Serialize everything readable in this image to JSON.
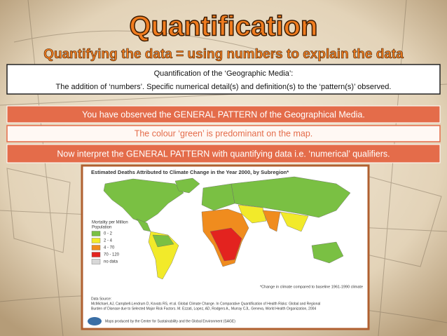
{
  "header": {
    "title": "Quantification",
    "subtitle": "Quantifying the data = using numbers to explain the data"
  },
  "definition_box": {
    "heading": "Quantification of the ‘Geographic Media’:",
    "text": "The addition of ‘numbers’.  Specific numerical detail(s) and definition(s) to the ‘pattern(s)’ observed."
  },
  "banners": [
    "You have observed the GENERAL PATTERN of the Geographical Media.",
    "The colour ‘green’ is predominant on the map.",
    "Now interpret the GENERAL PATTERN with quantifying data i.e. ‘numerical’ qualifiers."
  ],
  "map": {
    "title": "Estimated Deaths Attributed to Climate Change in the Year 2000, by Subregion*",
    "legend": {
      "title": [
        "Mortality per Million",
        "Population"
      ],
      "items": [
        {
          "label": "0 - 2",
          "color": "#7ac043"
        },
        {
          "label": "2 - 4",
          "color": "#f2ea2a"
        },
        {
          "label": "4 - 70",
          "color": "#f08c1e"
        },
        {
          "label": "70 - 120",
          "color": "#e3231f"
        },
        {
          "label": "no data",
          "color": "#d8d8d8"
        }
      ]
    },
    "footnote": "*Change in climate compared to baseline 1961-1990 climate",
    "source": [
      "Data Source:",
      "McMichael, AJ, Campbell-Lendrum D, Kovats RS, et al. Global Climate Change. In Comparative Quantification of Health Risks: Global and Regional",
      "Burden of Disease due to Selected Major Risk Factors. M. Ezzati, Lopez, AD, Rodgers A., Murray CJL. Geneva, World Health Organization, 2004"
    ],
    "credit": "Maps produced by the Center for Sustainability and the Global Environment (SAGE)"
  }
}
